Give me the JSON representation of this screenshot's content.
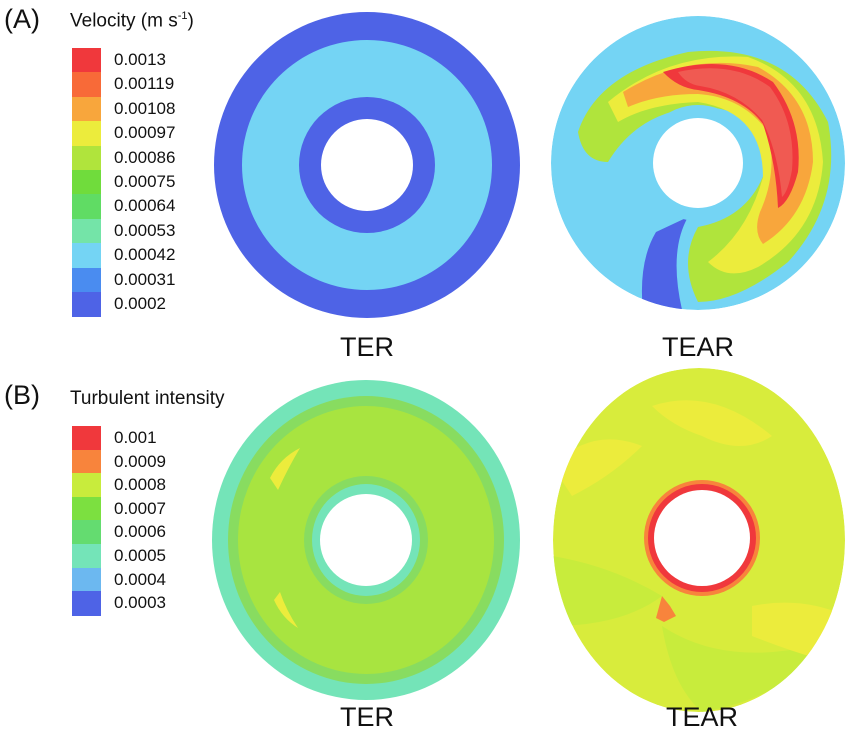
{
  "panel_a": {
    "letter": "(A)",
    "legend_title": "Velocity (m s",
    "legend_title_sup": "-1",
    "legend_title_end": ")",
    "legend_labels": [
      "0.0013",
      "0.00119",
      "0.00108",
      "0.00097",
      "0.00086",
      "0.00075",
      "0.00064",
      "0.00053",
      "0.00042",
      "0.00031",
      "0.0002"
    ],
    "legend_colors": [
      "#f0383c",
      "#f86a38",
      "#f8a63c",
      "#ecec3c",
      "#b0e43c",
      "#70dc3c",
      "#60dc64",
      "#74e4a8",
      "#74d4f4",
      "#4a8cf0",
      "#4e63e6"
    ],
    "captions": [
      "TER",
      "TEAR"
    ]
  },
  "panel_b": {
    "letter": "(B)",
    "legend_title": "Turbulent intensity",
    "legend_labels": [
      "0.001",
      "0.0009",
      "0.0008",
      "0.0007",
      "0.0006",
      "0.0005",
      "0.0004",
      "0.0003"
    ],
    "legend_colors": [
      "#f0383c",
      "#f8843c",
      "#c8ec3c",
      "#7ce040",
      "#64dc70",
      "#74e4b8",
      "#6cb8f0",
      "#4e63e6"
    ],
    "captions": [
      "TER",
      "TEAR"
    ]
  }
}
